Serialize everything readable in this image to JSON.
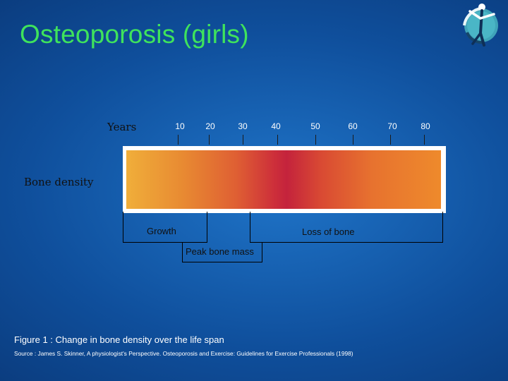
{
  "slide": {
    "title": "Osteoporosis (girls)"
  },
  "diagram": {
    "years_label": "Years",
    "bone_density_label": "Bone density",
    "ticks": [
      "10",
      "20",
      "30",
      "40",
      "50",
      "60",
      "70",
      "80"
    ],
    "growth_label": "Growth",
    "loss_label": "Loss of bone",
    "peak_label": "Peak bone mass"
  },
  "captions": {
    "figure": "Figure 1 : Change in bone density over the life span",
    "source": "Source : James S. Skinner, A physiologist's Perspective. Osteoporosis and Exercise: Guidelines for Exercise Professionals (1998)"
  },
  "colors": {
    "title": "#3fe35c",
    "background": "#1459ad",
    "bar_peak": "#c4233c",
    "bar_ends": "#f0ae3a"
  },
  "icons": {
    "logo": "stick-figure-globe-logo"
  }
}
